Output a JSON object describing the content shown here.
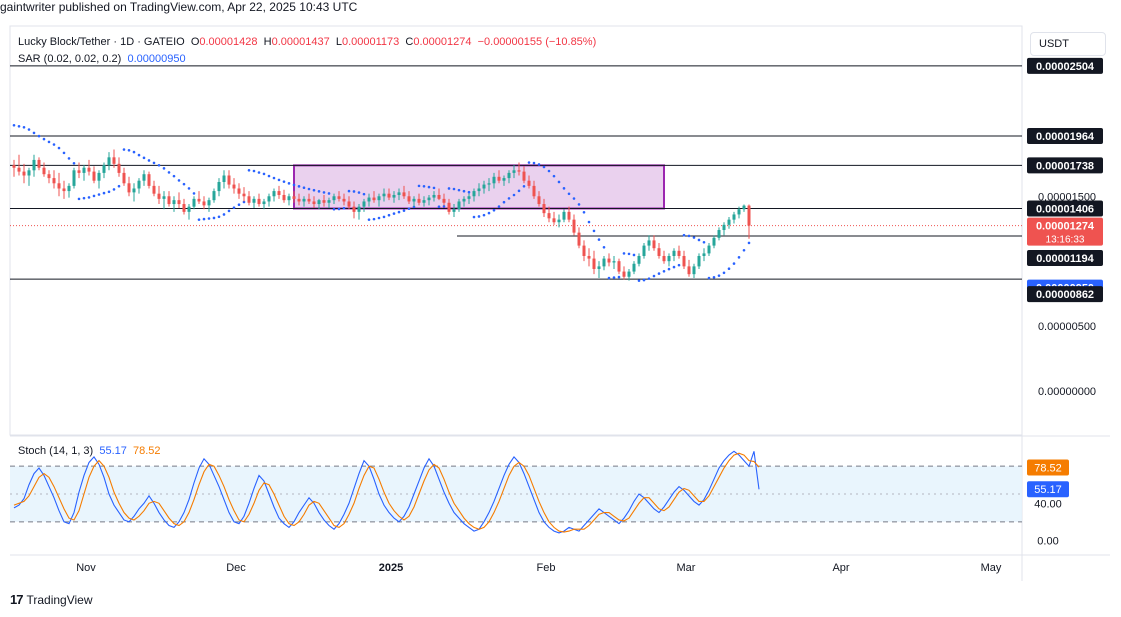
{
  "header": {
    "publish_line": "gaintwriter published on TradingView.com, Apr 22, 2025 10:43 UTC"
  },
  "legend": {
    "symbol": "Lucky Block/Tether · 1D · GATEIO",
    "o_label": "O",
    "o_value": "0.00001428",
    "h_label": "H",
    "h_value": "0.00001437",
    "l_label": "L",
    "l_value": "0.00001173",
    "c_label": "C",
    "c_value": "0.00001274",
    "change": "−0.00000155 (−10.85%)",
    "sar_label": "SAR (0.02, 0.02, 0.2)",
    "sar_value": "0.00000950",
    "stoch_label": "Stoch (14, 1, 3)",
    "stoch_k": "55.17",
    "stoch_d": "78.52"
  },
  "currency": "USDT",
  "brand": "TradingView",
  "colors": {
    "up": "#26a69a",
    "down": "#ef5350",
    "sar": "#2962ff",
    "stoch_k": "#2962ff",
    "stoch_d": "#f57c00",
    "zone_fill": "#e1bee7",
    "zone_border": "#9c27b0",
    "stoch_band": "#e3f2fd",
    "hline": "#131722"
  },
  "chart_data": [
    {
      "type": "candlestick",
      "title": "Lucky Block/Tether · 1D · GATEIO",
      "x_ticks": [
        "Nov",
        "Dec",
        "2025",
        "Feb",
        "Mar",
        "Apr",
        "May"
      ],
      "y_tick_labels": [
        "0.00000000",
        "0.00000500",
        "0.00001500"
      ],
      "ylim": [
        0.0,
        2.75e-05
      ],
      "horizontal_levels": [
        2.504e-05,
        1.964e-05,
        1.738e-05,
        1.406e-05,
        1.194e-05,
        8.62e-06
      ],
      "level_labels": [
        "0.00002504",
        "0.00001964",
        "0.00001738",
        "0.00001406",
        "0.00001194",
        "0.00000862"
      ],
      "last_price_label": "0.00001274",
      "countdown": "13:16:33",
      "sar_label_value": "0.00000950",
      "consolidation_zone": {
        "price_top": 1.738e-05,
        "price_bottom": 1.406e-05,
        "from": "2024-12-11",
        "to": "2025-02-23"
      },
      "start_date": "2024-10-16",
      "ohlc": [
        [
          1740,
          1780,
          1650,
          1720
        ],
        [
          1720,
          1820,
          1660,
          1690
        ],
        [
          1690,
          1750,
          1600,
          1660
        ],
        [
          1660,
          1720,
          1580,
          1700
        ],
        [
          1700,
          1820,
          1650,
          1780
        ],
        [
          1780,
          1800,
          1700,
          1720
        ],
        [
          1720,
          1760,
          1650,
          1670
        ],
        [
          1670,
          1700,
          1600,
          1640
        ],
        [
          1640,
          1700,
          1560,
          1600
        ],
        [
          1600,
          1680,
          1500,
          1560
        ],
        [
          1560,
          1620,
          1480,
          1540
        ],
        [
          1540,
          1600,
          1490,
          1580
        ],
        [
          1580,
          1720,
          1560,
          1700
        ],
        [
          1700,
          1760,
          1640,
          1680
        ],
        [
          1680,
          1740,
          1620,
          1720
        ],
        [
          1720,
          1780,
          1660,
          1690
        ],
        [
          1690,
          1730,
          1600,
          1620
        ],
        [
          1620,
          1700,
          1560,
          1680
        ],
        [
          1680,
          1760,
          1640,
          1740
        ],
        [
          1740,
          1840,
          1700,
          1800
        ],
        [
          1800,
          1860,
          1720,
          1750
        ],
        [
          1750,
          1800,
          1650,
          1680
        ],
        [
          1680,
          1720,
          1580,
          1600
        ],
        [
          1600,
          1650,
          1500,
          1530
        ],
        [
          1530,
          1600,
          1460,
          1560
        ],
        [
          1560,
          1640,
          1520,
          1620
        ],
        [
          1620,
          1700,
          1580,
          1670
        ],
        [
          1670,
          1690,
          1560,
          1580
        ],
        [
          1580,
          1620,
          1500,
          1520
        ],
        [
          1520,
          1580,
          1440,
          1480
        ],
        [
          1480,
          1540,
          1400,
          1500
        ],
        [
          1500,
          1540,
          1420,
          1440
        ],
        [
          1440,
          1500,
          1380,
          1470
        ],
        [
          1470,
          1530,
          1410,
          1440
        ],
        [
          1440,
          1480,
          1360,
          1380
        ],
        [
          1380,
          1440,
          1320,
          1420
        ],
        [
          1420,
          1500,
          1400,
          1480
        ],
        [
          1480,
          1540,
          1440,
          1460
        ],
        [
          1460,
          1500,
          1400,
          1430
        ],
        [
          1430,
          1490,
          1380,
          1470
        ],
        [
          1470,
          1560,
          1450,
          1540
        ],
        [
          1540,
          1640,
          1500,
          1610
        ],
        [
          1610,
          1700,
          1560,
          1660
        ],
        [
          1660,
          1700,
          1560,
          1590
        ],
        [
          1590,
          1640,
          1520,
          1560
        ],
        [
          1560,
          1600,
          1480,
          1520
        ],
        [
          1520,
          1570,
          1460,
          1500
        ],
        [
          1500,
          1540,
          1430,
          1450
        ],
        [
          1450,
          1500,
          1410,
          1480
        ],
        [
          1480,
          1520,
          1420,
          1440
        ],
        [
          1440,
          1480,
          1400,
          1460
        ],
        [
          1460,
          1520,
          1420,
          1500
        ],
        [
          1500,
          1560,
          1460,
          1540
        ],
        [
          1540,
          1580,
          1480,
          1510
        ],
        [
          1510,
          1550,
          1450,
          1470
        ],
        [
          1470,
          1520,
          1430,
          1500
        ],
        [
          1500,
          1540,
          1450,
          1480
        ],
        [
          1480,
          1520,
          1430,
          1460
        ],
        [
          1460,
          1500,
          1420,
          1480
        ],
        [
          1480,
          1520,
          1440,
          1460
        ],
        [
          1460,
          1500,
          1410,
          1440
        ],
        [
          1440,
          1480,
          1400,
          1470
        ],
        [
          1470,
          1510,
          1420,
          1450
        ],
        [
          1450,
          1490,
          1410,
          1470
        ],
        [
          1470,
          1520,
          1440,
          1500
        ],
        [
          1500,
          1540,
          1460,
          1480
        ],
        [
          1480,
          1520,
          1430,
          1460
        ],
        [
          1460,
          1500,
          1400,
          1420
        ],
        [
          1420,
          1460,
          1330,
          1380
        ],
        [
          1380,
          1440,
          1320,
          1420
        ],
        [
          1420,
          1480,
          1380,
          1460
        ],
        [
          1460,
          1520,
          1420,
          1490
        ],
        [
          1490,
          1540,
          1450,
          1470
        ],
        [
          1470,
          1520,
          1420,
          1500
        ],
        [
          1500,
          1560,
          1460,
          1520
        ],
        [
          1520,
          1560,
          1470,
          1490
        ],
        [
          1490,
          1540,
          1450,
          1510
        ],
        [
          1510,
          1560,
          1470,
          1530
        ],
        [
          1530,
          1580,
          1480,
          1500
        ],
        [
          1500,
          1540,
          1440,
          1460
        ],
        [
          1460,
          1500,
          1420,
          1480
        ],
        [
          1480,
          1520,
          1430,
          1450
        ],
        [
          1450,
          1500,
          1420,
          1470
        ],
        [
          1470,
          1510,
          1430,
          1490
        ],
        [
          1490,
          1540,
          1460,
          1510
        ],
        [
          1510,
          1560,
          1470,
          1480
        ],
        [
          1480,
          1520,
          1430,
          1450
        ],
        [
          1450,
          1480,
          1360,
          1380
        ],
        [
          1380,
          1440,
          1340,
          1400
        ],
        [
          1400,
          1480,
          1380,
          1460
        ],
        [
          1460,
          1500,
          1420,
          1480
        ],
        [
          1480,
          1520,
          1440,
          1500
        ],
        [
          1500,
          1560,
          1460,
          1540
        ],
        [
          1540,
          1600,
          1500,
          1560
        ],
        [
          1560,
          1620,
          1520,
          1590
        ],
        [
          1590,
          1640,
          1540,
          1600
        ],
        [
          1600,
          1680,
          1560,
          1650
        ],
        [
          1650,
          1700,
          1600,
          1620
        ],
        [
          1620,
          1660,
          1580,
          1640
        ],
        [
          1640,
          1700,
          1600,
          1680
        ],
        [
          1680,
          1740,
          1640,
          1700
        ],
        [
          1700,
          1760,
          1660,
          1690
        ],
        [
          1690,
          1730,
          1600,
          1620
        ],
        [
          1620,
          1660,
          1560,
          1580
        ],
        [
          1580,
          1620,
          1480,
          1500
        ],
        [
          1500,
          1540,
          1420,
          1440
        ],
        [
          1440,
          1480,
          1340,
          1370
        ],
        [
          1370,
          1420,
          1300,
          1330
        ],
        [
          1330,
          1380,
          1280,
          1300
        ],
        [
          1300,
          1360,
          1260,
          1320
        ],
        [
          1320,
          1400,
          1300,
          1380
        ],
        [
          1380,
          1420,
          1300,
          1320
        ],
        [
          1320,
          1360,
          1200,
          1220
        ],
        [
          1220,
          1260,
          1100,
          1120
        ],
        [
          1120,
          1160,
          1000,
          1040
        ],
        [
          1040,
          1100,
          960,
          1020
        ],
        [
          1020,
          1080,
          900,
          940
        ],
        [
          940,
          1000,
          870,
          960
        ],
        [
          960,
          1040,
          930,
          1020
        ],
        [
          1020,
          1060,
          960,
          990
        ],
        [
          990,
          1040,
          940,
          1000
        ],
        [
          1000,
          1020,
          900,
          920
        ],
        [
          920,
          960,
          860,
          880
        ],
        [
          880,
          940,
          850,
          920
        ],
        [
          920,
          1000,
          900,
          980
        ],
        [
          980,
          1060,
          960,
          1040
        ],
        [
          1040,
          1140,
          1020,
          1120
        ],
        [
          1120,
          1200,
          1080,
          1160
        ],
        [
          1160,
          1200,
          1080,
          1100
        ],
        [
          1100,
          1140,
          1020,
          1040
        ],
        [
          1040,
          1080,
          980,
          1000
        ],
        [
          1000,
          1060,
          960,
          1040
        ],
        [
          1040,
          1100,
          1000,
          1080
        ],
        [
          1080,
          1120,
          1020,
          1040
        ],
        [
          1040,
          1080,
          940,
          960
        ],
        [
          960,
          1010,
          880,
          900
        ],
        [
          900,
          980,
          870,
          960
        ],
        [
          960,
          1060,
          940,
          1040
        ],
        [
          1040,
          1100,
          1000,
          1060
        ],
        [
          1060,
          1140,
          1040,
          1120
        ],
        [
          1120,
          1200,
          1100,
          1180
        ],
        [
          1180,
          1260,
          1160,
          1240
        ],
        [
          1240,
          1300,
          1200,
          1280
        ],
        [
          1280,
          1340,
          1250,
          1320
        ],
        [
          1320,
          1380,
          1290,
          1360
        ],
        [
          1360,
          1420,
          1330,
          1400
        ],
        [
          1400,
          1437,
          1380,
          1428
        ],
        [
          1428,
          1437,
          1173,
          1274
        ]
      ]
    },
    {
      "type": "line",
      "title": "Stoch (14, 1, 3)",
      "y_ticks": [
        0,
        40,
        80
      ],
      "y_tick_labels": [
        "0.00",
        "40.00"
      ],
      "ylim": [
        -5,
        105
      ],
      "upper_band": 80,
      "lower_band": 20,
      "series": [
        {
          "name": "%K",
          "last": 55.17,
          "values": [
            35,
            38,
            45,
            60,
            72,
            78,
            70,
            58,
            46,
            32,
            20,
            18,
            30,
            52,
            70,
            84,
            90,
            82,
            68,
            50,
            38,
            30,
            22,
            20,
            26,
            34,
            40,
            48,
            40,
            30,
            22,
            16,
            14,
            20,
            30,
            44,
            62,
            78,
            88,
            82,
            70,
            58,
            44,
            30,
            20,
            18,
            26,
            40,
            56,
            70,
            64,
            50,
            36,
            24,
            18,
            14,
            20,
            30,
            38,
            46,
            40,
            30,
            22,
            16,
            12,
            18,
            28,
            40,
            56,
            72,
            86,
            80,
            66,
            50,
            38,
            30,
            24,
            20,
            26,
            36,
            50,
            64,
            78,
            88,
            80,
            66,
            52,
            40,
            30,
            24,
            18,
            14,
            10,
            12,
            20,
            30,
            42,
            56,
            70,
            82,
            90,
            84,
            72,
            58,
            44,
            30,
            20,
            14,
            10,
            8,
            10,
            14,
            12,
            10,
            16,
            22,
            28,
            34,
            30,
            26,
            22,
            18,
            24,
            32,
            42,
            50,
            46,
            40,
            34,
            30,
            36,
            44,
            52,
            58,
            54,
            48,
            42,
            38,
            44,
            54,
            66,
            78,
            86,
            92,
            96,
            92,
            86,
            80,
            96,
            55
          ]
        },
        {
          "name": "%D",
          "last": 78.52,
          "values": [
            38,
            40,
            42,
            48,
            58,
            68,
            72,
            68,
            58,
            46,
            34,
            24,
            22,
            32,
            50,
            68,
            80,
            86,
            80,
            68,
            52,
            40,
            30,
            24,
            22,
            26,
            32,
            40,
            42,
            40,
            32,
            24,
            18,
            16,
            20,
            30,
            44,
            60,
            74,
            82,
            80,
            70,
            58,
            44,
            32,
            22,
            20,
            28,
            40,
            54,
            62,
            60,
            50,
            38,
            26,
            18,
            16,
            20,
            28,
            38,
            42,
            40,
            32,
            24,
            16,
            14,
            18,
            28,
            40,
            56,
            70,
            80,
            78,
            66,
            52,
            40,
            32,
            26,
            22,
            26,
            36,
            50,
            64,
            76,
            82,
            78,
            66,
            52,
            40,
            32,
            24,
            18,
            14,
            12,
            14,
            20,
            30,
            42,
            56,
            70,
            80,
            84,
            80,
            70,
            56,
            42,
            30,
            20,
            14,
            10,
            9,
            10,
            12,
            12,
            12,
            16,
            22,
            28,
            30,
            30,
            26,
            22,
            21,
            24,
            32,
            40,
            46,
            46,
            40,
            34,
            32,
            36,
            44,
            52,
            56,
            54,
            48,
            42,
            42,
            48,
            58,
            68,
            78,
            86,
            92,
            94,
            92,
            86,
            85,
            79
          ]
        }
      ]
    }
  ]
}
